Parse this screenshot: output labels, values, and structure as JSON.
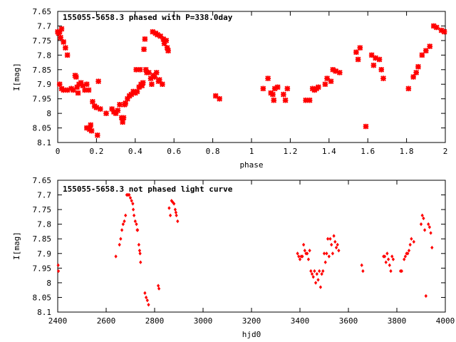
{
  "chart_data": [
    {
      "type": "scatter",
      "title": "155055-5658.3 phased with P=338.0day",
      "xlabel": "phase",
      "ylabel": "I[mag]",
      "xlim": [
        0,
        2
      ],
      "ylim": [
        7.65,
        8.1
      ],
      "y_inverted": true,
      "xticks": [
        0,
        0.2,
        0.4,
        0.6,
        0.8,
        1,
        1.2,
        1.4,
        1.6,
        1.8,
        2
      ],
      "yticks": [
        7.65,
        7.7,
        7.75,
        7.8,
        7.85,
        7.9,
        7.95,
        8,
        8.05,
        8.1
      ],
      "xtick_labels": [
        "0",
        "0.2",
        "0.4",
        "0.6",
        "0.8",
        "1",
        "1.2",
        "1.4",
        "1.6",
        "1.8",
        "2"
      ],
      "ytick_labels": [
        "7.65",
        "7.7",
        "7.75",
        "7.8",
        "7.85",
        "7.9",
        "7.95",
        "8",
        "8.05",
        "8.1"
      ],
      "marker_color": "#ff0000",
      "grid": false,
      "points": [
        [
          0.0,
          7.72
        ],
        [
          0.005,
          7.725
        ],
        [
          0.01,
          7.72
        ],
        [
          0.015,
          7.74
        ],
        [
          0.02,
          7.71
        ],
        [
          0.03,
          7.755
        ],
        [
          0.04,
          7.775
        ],
        [
          0.05,
          7.8
        ],
        [
          0.01,
          7.9
        ],
        [
          0.02,
          7.915
        ],
        [
          0.03,
          7.92
        ],
        [
          0.05,
          7.92
        ],
        [
          0.07,
          7.915
        ],
        [
          0.08,
          7.92
        ],
        [
          0.09,
          7.87
        ],
        [
          0.095,
          7.875
        ],
        [
          0.1,
          7.91
        ],
        [
          0.105,
          7.93
        ],
        [
          0.11,
          7.9
        ],
        [
          0.12,
          7.895
        ],
        [
          0.13,
          7.905
        ],
        [
          0.14,
          7.92
        ],
        [
          0.15,
          7.9
        ],
        [
          0.16,
          7.92
        ],
        [
          0.15,
          8.05
        ],
        [
          0.165,
          8.055
        ],
        [
          0.17,
          8.04
        ],
        [
          0.175,
          8.06
        ],
        [
          0.18,
          7.96
        ],
        [
          0.19,
          7.975
        ],
        [
          0.2,
          7.98
        ],
        [
          0.205,
          8.075
        ],
        [
          0.21,
          7.89
        ],
        [
          0.22,
          7.985
        ],
        [
          0.25,
          8.0
        ],
        [
          0.28,
          7.985
        ],
        [
          0.29,
          7.995
        ],
        [
          0.3,
          8.0
        ],
        [
          0.31,
          7.99
        ],
        [
          0.32,
          7.97
        ],
        [
          0.33,
          8.015
        ],
        [
          0.335,
          8.03
        ],
        [
          0.34,
          8.015
        ],
        [
          0.345,
          7.97
        ],
        [
          0.35,
          7.965
        ],
        [
          0.36,
          7.95
        ],
        [
          0.37,
          7.94
        ],
        [
          0.38,
          7.935
        ],
        [
          0.39,
          7.925
        ],
        [
          0.4,
          7.93
        ],
        [
          0.405,
          7.85
        ],
        [
          0.41,
          7.925
        ],
        [
          0.42,
          7.91
        ],
        [
          0.425,
          7.85
        ],
        [
          0.43,
          7.9
        ],
        [
          0.435,
          7.905
        ],
        [
          0.44,
          7.895
        ],
        [
          0.445,
          7.78
        ],
        [
          0.45,
          7.745
        ],
        [
          0.455,
          7.85
        ],
        [
          0.46,
          7.86
        ],
        [
          0.47,
          7.86
        ],
        [
          0.48,
          7.88
        ],
        [
          0.485,
          7.9
        ],
        [
          0.49,
          7.72
        ],
        [
          0.495,
          7.87
        ],
        [
          0.5,
          7.875
        ],
        [
          0.505,
          7.725
        ],
        [
          0.51,
          7.86
        ],
        [
          0.515,
          7.73
        ],
        [
          0.52,
          7.89
        ],
        [
          0.525,
          7.885
        ],
        [
          0.53,
          7.735
        ],
        [
          0.54,
          7.9
        ],
        [
          0.545,
          7.745
        ],
        [
          0.55,
          7.76
        ],
        [
          0.56,
          7.75
        ],
        [
          0.565,
          7.775
        ],
        [
          0.57,
          7.785
        ],
        [
          0.815,
          7.94
        ],
        [
          0.835,
          7.95
        ],
        [
          1.06,
          7.915
        ],
        [
          1.085,
          7.88
        ],
        [
          1.1,
          7.93
        ],
        [
          1.11,
          7.935
        ],
        [
          1.115,
          7.955
        ],
        [
          1.12,
          7.915
        ],
        [
          1.135,
          7.91
        ],
        [
          1.165,
          7.935
        ],
        [
          1.175,
          7.955
        ],
        [
          1.185,
          7.915
        ],
        [
          1.28,
          7.955
        ],
        [
          1.3,
          7.955
        ],
        [
          1.315,
          7.915
        ],
        [
          1.325,
          7.92
        ],
        [
          1.335,
          7.915
        ],
        [
          1.345,
          7.91
        ],
        [
          1.38,
          7.9
        ],
        [
          1.39,
          7.88
        ],
        [
          1.41,
          7.89
        ],
        [
          1.42,
          7.85
        ],
        [
          1.435,
          7.855
        ],
        [
          1.455,
          7.86
        ],
        [
          1.54,
          7.79
        ],
        [
          1.55,
          7.815
        ],
        [
          1.56,
          7.775
        ],
        [
          1.59,
          8.045
        ],
        [
          1.62,
          7.8
        ],
        [
          1.63,
          7.835
        ],
        [
          1.64,
          7.81
        ],
        [
          1.66,
          7.815
        ],
        [
          1.67,
          7.85
        ],
        [
          1.68,
          7.88
        ],
        [
          1.81,
          7.915
        ],
        [
          1.835,
          7.875
        ],
        [
          1.85,
          7.86
        ],
        [
          1.86,
          7.84
        ],
        [
          1.88,
          7.8
        ],
        [
          1.9,
          7.785
        ],
        [
          1.92,
          7.77
        ],
        [
          1.94,
          7.7
        ],
        [
          1.955,
          7.705
        ],
        [
          1.98,
          7.715
        ],
        [
          1.995,
          7.72
        ]
      ]
    },
    {
      "type": "scatter",
      "title": "155055-5658.3 not phased light curve",
      "xlabel": "hjd0",
      "ylabel": "I[mag]",
      "xlim": [
        2400,
        4000
      ],
      "ylim": [
        7.65,
        8.1
      ],
      "y_inverted": true,
      "xticks": [
        2400,
        2600,
        2800,
        3000,
        3200,
        3400,
        3600,
        3800,
        4000
      ],
      "yticks": [
        7.65,
        7.7,
        7.75,
        7.8,
        7.85,
        7.9,
        7.95,
        8,
        8.05,
        8.1
      ],
      "xtick_labels": [
        "2400",
        "2600",
        "2800",
        "3000",
        "3200",
        "3400",
        "3600",
        "3800",
        "4000"
      ],
      "ytick_labels": [
        "7.65",
        "7.7",
        "7.75",
        "7.8",
        "7.85",
        "7.9",
        "7.95",
        "8",
        "8.05",
        "8.1"
      ],
      "marker_color": "#ff0000",
      "grid": false,
      "points": [
        [
          2402,
          7.94
        ],
        [
          2403,
          7.96
        ],
        [
          2640,
          7.91
        ],
        [
          2655,
          7.87
        ],
        [
          2660,
          7.85
        ],
        [
          2665,
          7.82
        ],
        [
          2670,
          7.8
        ],
        [
          2675,
          7.79
        ],
        [
          2680,
          7.77
        ],
        [
          2685,
          7.7
        ],
        [
          2690,
          7.7
        ],
        [
          2695,
          7.7
        ],
        [
          2700,
          7.71
        ],
        [
          2705,
          7.72
        ],
        [
          2710,
          7.73
        ],
        [
          2712,
          7.75
        ],
        [
          2715,
          7.77
        ],
        [
          2720,
          7.79
        ],
        [
          2725,
          7.8
        ],
        [
          2728,
          7.82
        ],
        [
          2730,
          7.82
        ],
        [
          2735,
          7.87
        ],
        [
          2738,
          7.89
        ],
        [
          2740,
          7.9
        ],
        [
          2742,
          7.93
        ],
        [
          2760,
          8.035
        ],
        [
          2765,
          8.05
        ],
        [
          2770,
          8.06
        ],
        [
          2775,
          8.075
        ],
        [
          2815,
          8.01
        ],
        [
          2818,
          8.02
        ],
        [
          2860,
          7.745
        ],
        [
          2865,
          7.77
        ],
        [
          2870,
          7.72
        ],
        [
          2875,
          7.725
        ],
        [
          2880,
          7.73
        ],
        [
          2885,
          7.75
        ],
        [
          2888,
          7.76
        ],
        [
          2890,
          7.77
        ],
        [
          2895,
          7.79
        ],
        [
          3390,
          7.9
        ],
        [
          3395,
          7.91
        ],
        [
          3400,
          7.92
        ],
        [
          3405,
          7.91
        ],
        [
          3410,
          7.91
        ],
        [
          3415,
          7.87
        ],
        [
          3420,
          7.89
        ],
        [
          3425,
          7.9
        ],
        [
          3430,
          7.9
        ],
        [
          3435,
          7.92
        ],
        [
          3440,
          7.89
        ],
        [
          3445,
          7.96
        ],
        [
          3450,
          7.97
        ],
        [
          3455,
          7.98
        ],
        [
          3460,
          7.96
        ],
        [
          3465,
          8.0
        ],
        [
          3470,
          7.97
        ],
        [
          3475,
          7.99
        ],
        [
          3480,
          7.96
        ],
        [
          3485,
          8.015
        ],
        [
          3490,
          7.97
        ],
        [
          3495,
          7.96
        ],
        [
          3500,
          7.9
        ],
        [
          3505,
          7.93
        ],
        [
          3510,
          7.9
        ],
        [
          3515,
          7.85
        ],
        [
          3520,
          7.91
        ],
        [
          3525,
          7.85
        ],
        [
          3530,
          7.87
        ],
        [
          3535,
          7.9
        ],
        [
          3540,
          7.84
        ],
        [
          3545,
          7.86
        ],
        [
          3550,
          7.88
        ],
        [
          3555,
          7.87
        ],
        [
          3560,
          7.89
        ],
        [
          3655,
          7.94
        ],
        [
          3660,
          7.96
        ],
        [
          3745,
          7.91
        ],
        [
          3750,
          7.91
        ],
        [
          3755,
          7.93
        ],
        [
          3760,
          7.9
        ],
        [
          3765,
          7.92
        ],
        [
          3770,
          7.94
        ],
        [
          3775,
          7.96
        ],
        [
          3780,
          7.91
        ],
        [
          3785,
          7.92
        ],
        [
          3815,
          7.96
        ],
        [
          3820,
          7.96
        ],
        [
          3830,
          7.92
        ],
        [
          3835,
          7.91
        ],
        [
          3840,
          7.9
        ],
        [
          3845,
          7.9
        ],
        [
          3850,
          7.89
        ],
        [
          3855,
          7.87
        ],
        [
          3860,
          7.85
        ],
        [
          3870,
          7.86
        ],
        [
          3900,
          7.8
        ],
        [
          3905,
          7.77
        ],
        [
          3910,
          7.78
        ],
        [
          3915,
          7.82
        ],
        [
          3920,
          8.045
        ],
        [
          3930,
          7.8
        ],
        [
          3935,
          7.81
        ],
        [
          3940,
          7.83
        ],
        [
          3945,
          7.88
        ]
      ]
    }
  ]
}
